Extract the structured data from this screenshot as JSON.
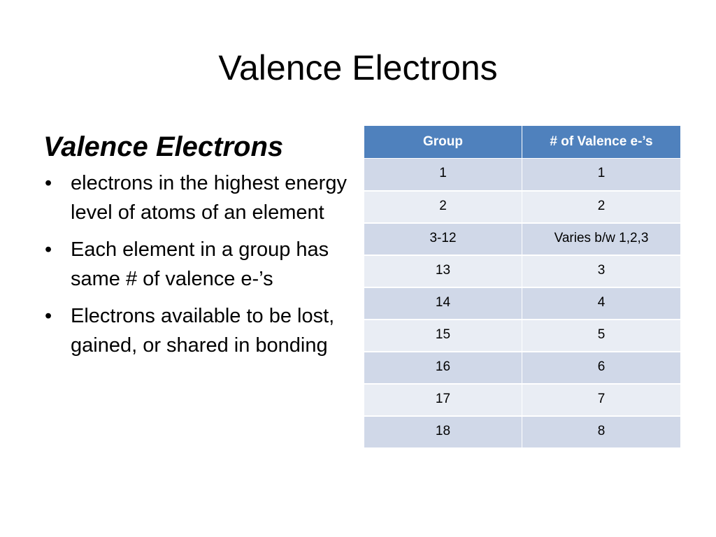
{
  "slide": {
    "title": "Valence Electrons"
  },
  "content": {
    "heading": "Valence Electrons",
    "bullet_symbol": "•",
    "bullets": [
      "electrons in the highest energy level of atoms of an element",
      "Each element in a group has same # of valence e-’s",
      "Electrons available to be lost, gained, or shared in bonding"
    ]
  },
  "table": {
    "headers": [
      "Group",
      "# of Valence e-’s"
    ],
    "rows": [
      [
        "1",
        "1"
      ],
      [
        "2",
        "2"
      ],
      [
        "3-12",
        "Varies b/w 1,2,3"
      ],
      [
        "13",
        "3"
      ],
      [
        "14",
        "4"
      ],
      [
        "15",
        "5"
      ],
      [
        "16",
        "6"
      ],
      [
        "17",
        "7"
      ],
      [
        "18",
        "8"
      ]
    ]
  },
  "colors": {
    "header_fill": "#4f81bd",
    "row_fill_odd": "#d0d8e8",
    "row_fill_even": "#e9edf4"
  }
}
